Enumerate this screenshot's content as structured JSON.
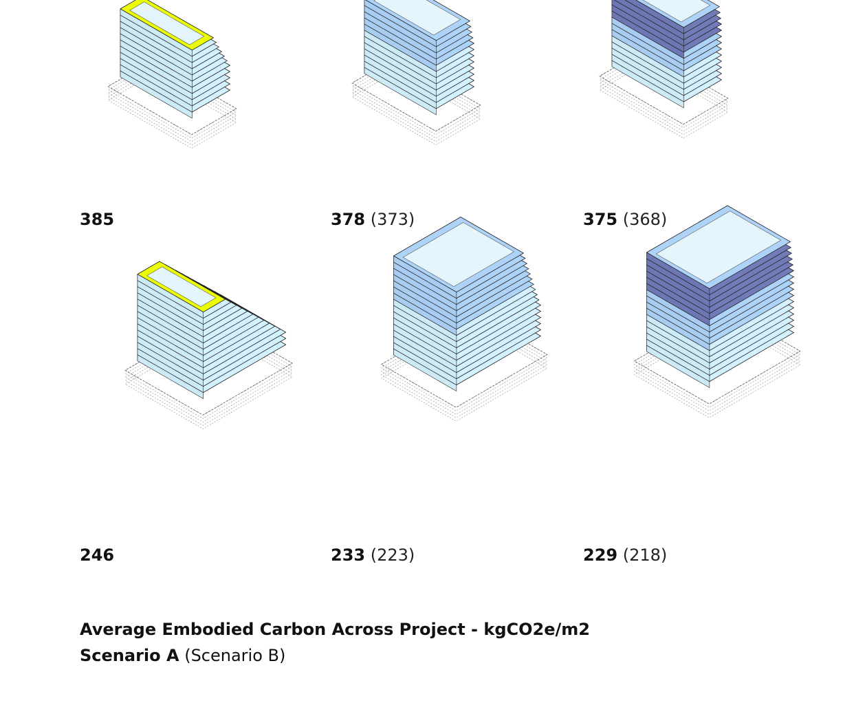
{
  "caption": {
    "title": "Average Embodied Carbon Across Project - kgCO2e/m2",
    "scenario_a": "Scenario A",
    "scenario_b": "(Scenario B)"
  },
  "options": [
    {
      "value": "385",
      "alt": ""
    },
    {
      "value": "378",
      "alt": "(373)"
    },
    {
      "value": "375",
      "alt": "(368)"
    },
    {
      "value": "246",
      "alt": ""
    },
    {
      "value": "233",
      "alt": "(223)"
    },
    {
      "value": "229",
      "alt": "(218)"
    }
  ],
  "colors": {
    "light": "#cdeaf7",
    "top_light": "#e4f6fb",
    "mid": "#a9cdf2",
    "dark": "#6d77b3",
    "outline": "#222222",
    "base_dash": "#888888"
  }
}
